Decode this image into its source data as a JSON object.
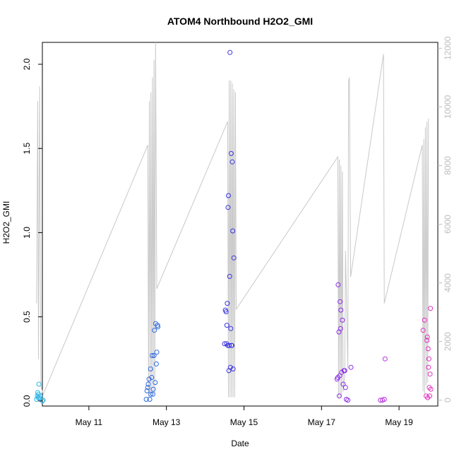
{
  "chart_data": {
    "type": "scatter",
    "title": "ATOM4 Northbound H2O2_GMI",
    "xlabel": "Date",
    "ylabel": "H2O2_GMI",
    "x_ticks": [
      {
        "day": 11,
        "label": "May 11"
      },
      {
        "day": 13,
        "label": "May 13"
      },
      {
        "day": 15,
        "label": "May 15"
      },
      {
        "day": 17,
        "label": "May 17"
      },
      {
        "day": 19,
        "label": "May 19"
      }
    ],
    "xlim_day": [
      9.8,
      20.0
    ],
    "ylim": [
      -0.03,
      2.13
    ],
    "y_ticks": [
      "0.0",
      "0.5",
      "1.0",
      "1.5",
      "2.0"
    ],
    "y2_ticks": [
      "0",
      "2000",
      "4000",
      "6000",
      "8000",
      "10000",
      "12000"
    ],
    "y2lim": [
      -200,
      12200
    ],
    "altitude_series_color": "#c8c8c8",
    "altitude_series": [
      [
        9.65,
        3300
      ],
      [
        9.68,
        10200
      ],
      [
        9.7,
        1400
      ],
      [
        9.73,
        10700
      ],
      [
        9.76,
        500
      ],
      [
        9.82,
        200
      ],
      [
        12.52,
        8700
      ],
      [
        12.54,
        100
      ],
      [
        12.56,
        10200
      ],
      [
        12.58,
        200
      ],
      [
        12.6,
        10500
      ],
      [
        12.62,
        100
      ],
      [
        12.64,
        11000
      ],
      [
        12.66,
        300
      ],
      [
        12.68,
        11600
      ],
      [
        12.7,
        200
      ],
      [
        12.72,
        12200
      ],
      [
        12.75,
        3800
      ],
      [
        14.58,
        9500
      ],
      [
        14.6,
        100
      ],
      [
        14.62,
        10900
      ],
      [
        14.64,
        100
      ],
      [
        14.66,
        10900
      ],
      [
        14.68,
        100
      ],
      [
        14.7,
        10800
      ],
      [
        14.72,
        100
      ],
      [
        14.74,
        10600
      ],
      [
        14.76,
        100
      ],
      [
        14.78,
        10500
      ],
      [
        14.8,
        3100
      ],
      [
        17.42,
        8300
      ],
      [
        17.44,
        100
      ],
      [
        17.46,
        8200
      ],
      [
        17.48,
        100
      ],
      [
        17.5,
        8000
      ],
      [
        17.52,
        200
      ],
      [
        17.54,
        7800
      ],
      [
        17.56,
        300
      ],
      [
        17.6,
        900
      ],
      [
        17.62,
        5100
      ],
      [
        17.68,
        1100
      ],
      [
        17.7,
        10900
      ],
      [
        17.72,
        11000
      ],
      [
        17.75,
        4200
      ],
      [
        18.6,
        11800
      ],
      [
        18.62,
        3300
      ],
      [
        19.6,
        8700
      ],
      [
        19.62,
        300
      ],
      [
        19.64,
        8900
      ],
      [
        19.66,
        200
      ],
      [
        19.68,
        9300
      ],
      [
        19.7,
        500
      ],
      [
        19.72,
        9500
      ],
      [
        19.74,
        600
      ],
      [
        19.76,
        9600
      ]
    ],
    "points": [
      [
        9.65,
        0.01,
        "#2fb6e6"
      ],
      [
        9.67,
        0.03,
        "#2fb6e6"
      ],
      [
        9.68,
        0.05,
        "#2fb6e6"
      ],
      [
        9.69,
        0.02,
        "#2fb6e6"
      ],
      [
        9.7,
        0.04,
        "#2fb6e6"
      ],
      [
        9.71,
        0.1,
        "#2fb6e6"
      ],
      [
        9.72,
        0.02,
        "#2fb6e6"
      ],
      [
        9.74,
        0.03,
        "#2fb6e6"
      ],
      [
        9.8,
        0.0,
        "#2fb6e6"
      ],
      [
        9.82,
        0.005,
        "#2fb6e6"
      ],
      [
        12.48,
        0.01,
        "#2f6be0"
      ],
      [
        12.5,
        0.06,
        "#2f6be0"
      ],
      [
        12.52,
        0.08,
        "#2f6be0"
      ],
      [
        12.53,
        0.1,
        "#2f6be0"
      ],
      [
        12.55,
        0.13,
        "#2f6be0"
      ],
      [
        12.57,
        0.01,
        "#2f6be0"
      ],
      [
        12.59,
        0.19,
        "#2f6be0"
      ],
      [
        12.6,
        0.04,
        "#2f6be0"
      ],
      [
        12.62,
        0.14,
        "#2f6be0"
      ],
      [
        12.63,
        0.27,
        "#2f6be0"
      ],
      [
        12.65,
        0.04,
        "#2f6be0"
      ],
      [
        12.66,
        0.07,
        "#2f6be0"
      ],
      [
        12.68,
        0.27,
        "#2f6be0"
      ],
      [
        12.69,
        0.42,
        "#2f6be0"
      ],
      [
        12.71,
        0.11,
        "#2f6be0"
      ],
      [
        12.72,
        0.46,
        "#2f6be0"
      ],
      [
        12.74,
        0.22,
        "#2f6be0"
      ],
      [
        12.75,
        0.29,
        "#2f6be0"
      ],
      [
        12.77,
        0.45,
        "#2f6be0"
      ],
      [
        12.78,
        0.44,
        "#2f6be0"
      ],
      [
        14.5,
        0.34,
        "#3a34e0"
      ],
      [
        14.52,
        0.54,
        "#3a34e0"
      ],
      [
        14.54,
        0.53,
        "#3a34e0"
      ],
      [
        14.55,
        0.34,
        "#3a34e0"
      ],
      [
        14.56,
        0.45,
        "#3a34e0"
      ],
      [
        14.57,
        0.58,
        "#3a34e0"
      ],
      [
        14.58,
        0.33,
        "#3a34e0"
      ],
      [
        14.59,
        1.15,
        "#3a34e0"
      ],
      [
        14.6,
        1.22,
        "#3a34e0"
      ],
      [
        14.61,
        0.18,
        "#3a34e0"
      ],
      [
        14.62,
        0.33,
        "#3a34e0"
      ],
      [
        14.63,
        0.74,
        "#3a34e0"
      ],
      [
        14.64,
        2.07,
        "#3a34e0"
      ],
      [
        14.65,
        0.2,
        "#3a34e0"
      ],
      [
        14.66,
        0.43,
        "#3a34e0"
      ],
      [
        14.67,
        1.47,
        "#3a34e0"
      ],
      [
        14.68,
        0.33,
        "#3a34e0"
      ],
      [
        14.69,
        0.33,
        "#3a34e0"
      ],
      [
        14.7,
        1.42,
        "#3a34e0"
      ],
      [
        14.71,
        1.01,
        "#3a34e0"
      ],
      [
        14.72,
        0.19,
        "#3a34e0"
      ],
      [
        14.74,
        0.85,
        "#3a34e0"
      ],
      [
        17.4,
        0.13,
        "#8a2be8"
      ],
      [
        17.42,
        0.14,
        "#8a2be8"
      ],
      [
        17.43,
        0.69,
        "#8a2be8"
      ],
      [
        17.45,
        0.41,
        "#8a2be8"
      ],
      [
        17.46,
        0.03,
        "#8a2be8"
      ],
      [
        17.47,
        0.15,
        "#8a2be8"
      ],
      [
        17.48,
        0.59,
        "#8a2be8"
      ],
      [
        17.49,
        0.43,
        "#8a2be8"
      ],
      [
        17.5,
        0.54,
        "#8a2be8"
      ],
      [
        17.52,
        0.17,
        "#8a2be8"
      ],
      [
        17.54,
        0.48,
        "#8a2be8"
      ],
      [
        17.56,
        0.1,
        "#8a2be8"
      ],
      [
        17.58,
        0.18,
        "#8a2be8"
      ],
      [
        17.6,
        0.18,
        "#8a2be8"
      ],
      [
        17.62,
        0.08,
        "#8a2be8"
      ],
      [
        17.64,
        0.01,
        "#8a2be8"
      ],
      [
        17.68,
        0.005,
        "#8a2be8"
      ],
      [
        17.76,
        0.2,
        "#8a2be8"
      ],
      [
        18.52,
        0.005,
        "#b52ee0"
      ],
      [
        18.57,
        0.005,
        "#b52ee0"
      ],
      [
        18.62,
        0.01,
        "#b52ee0"
      ],
      [
        18.64,
        0.25,
        "#b52ee0"
      ],
      [
        19.62,
        0.42,
        "#e02ec0"
      ],
      [
        19.66,
        0.48,
        "#e02ec0"
      ],
      [
        19.7,
        0.03,
        "#e02ec0"
      ],
      [
        19.72,
        0.36,
        "#e02ec0"
      ],
      [
        19.73,
        0.38,
        "#e02ec0"
      ],
      [
        19.74,
        0.02,
        "#e02ec0"
      ],
      [
        19.75,
        0.31,
        "#e02ec0"
      ],
      [
        19.76,
        0.2,
        "#e02ec0"
      ],
      [
        19.77,
        0.25,
        "#e02ec0"
      ],
      [
        19.78,
        0.08,
        "#e02ec0"
      ],
      [
        19.79,
        0.03,
        "#e02ec0"
      ],
      [
        19.8,
        0.16,
        "#e02ec0"
      ],
      [
        19.81,
        0.55,
        "#e02ec0"
      ],
      [
        19.82,
        0.07,
        "#e02ec0"
      ]
    ]
  }
}
